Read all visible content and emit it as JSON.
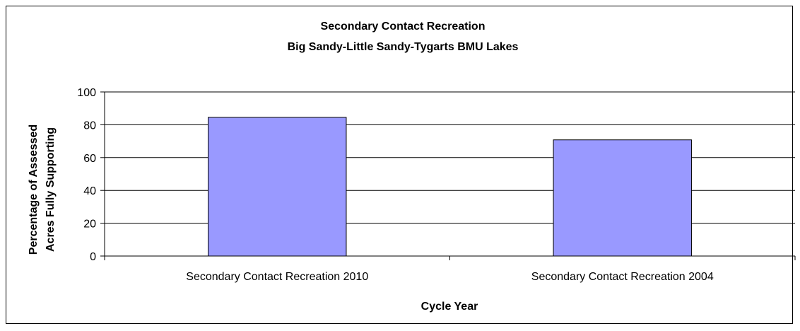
{
  "chart_data": {
    "type": "bar",
    "title": [
      "Secondary Contact Recreation",
      "Big Sandy-Little Sandy-Tygarts BMU Lakes"
    ],
    "xlabel": "Cycle Year",
    "ylabel": [
      "Percentage of Assessed",
      "Acres Fully Supporting"
    ],
    "categories": [
      "Secondary Contact Recreation 2010",
      "Secondary Contact Recreation 2004"
    ],
    "values": [
      84.5,
      70.8
    ],
    "ylim": [
      0,
      100
    ],
    "yticks": [
      "0",
      "20",
      "40",
      "60",
      "80",
      "100"
    ],
    "grid": true,
    "bar_color": "#9999FF"
  }
}
